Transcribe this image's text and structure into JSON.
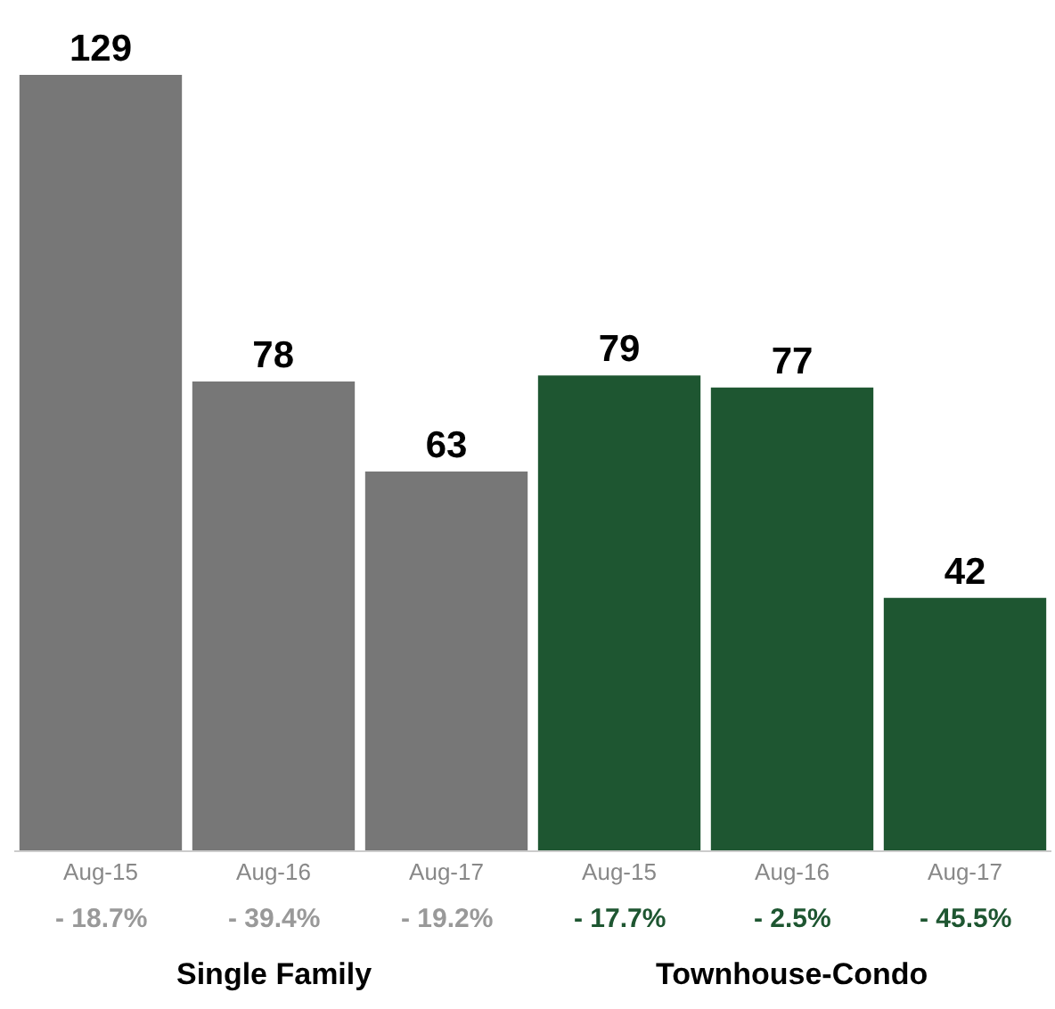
{
  "chart_data": {
    "type": "bar",
    "categories": [
      "Aug-15",
      "Aug-16",
      "Aug-17",
      "Aug-15",
      "Aug-16",
      "Aug-17"
    ],
    "values": [
      129,
      78,
      63,
      79,
      77,
      42
    ],
    "colors": [
      "#777777",
      "#777777",
      "#777777",
      "#1e5631",
      "#1e5631",
      "#1e5631"
    ],
    "data_labels": true,
    "annotations": [
      "- 18.7%",
      "- 39.4%",
      "- 19.2%",
      "- 17.7%",
      "- 2.5%",
      "- 45.5%",
      "Single Family",
      "Townhouse-Condo"
    ]
  }
}
